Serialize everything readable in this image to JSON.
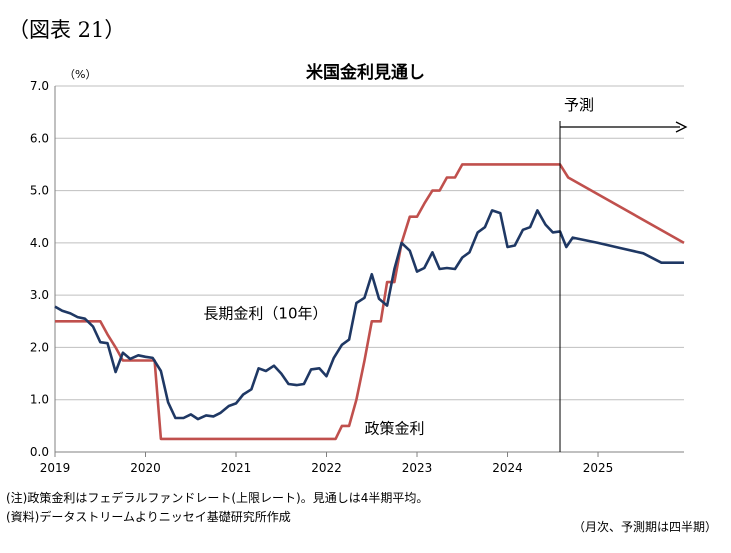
{
  "figure_label": "（図表 21）",
  "notes": {
    "note1": "(注)政策金利はフェデラルファンドレート(上限レート)。見通しは4半期平均。",
    "note2": "(資料)データストリームよりニッセイ基礎研究所作成",
    "note3": "（月次、予測期は四半期）"
  },
  "chart_data": {
    "type": "line",
    "title": "米国金利見通し",
    "ylabel": "（%）",
    "xlabel": "",
    "ylim": [
      0,
      7
    ],
    "yticks": [
      "0.0",
      "1.0",
      "2.0",
      "3.0",
      "4.0",
      "5.0",
      "6.0",
      "7.0"
    ],
    "xticks": [
      "2019",
      "2020",
      "2021",
      "2022",
      "2023",
      "2024",
      "2025"
    ],
    "xlim": [
      2019.0,
      2025.95
    ],
    "grid": true,
    "legend": "none",
    "forecast_start": 2024.58,
    "forecast_label": "予測",
    "series": [
      {
        "name": "政策金利",
        "color": "#c0504d",
        "points": [
          [
            2019.0,
            2.5
          ],
          [
            2019.5,
            2.5
          ],
          [
            2019.58,
            2.25
          ],
          [
            2019.67,
            2.0
          ],
          [
            2019.75,
            1.75
          ],
          [
            2020.1,
            1.75
          ],
          [
            2020.17,
            0.25
          ],
          [
            2022.1,
            0.25
          ],
          [
            2022.17,
            0.5
          ],
          [
            2022.25,
            0.5
          ],
          [
            2022.33,
            1.0
          ],
          [
            2022.42,
            1.75
          ],
          [
            2022.5,
            2.5
          ],
          [
            2022.6,
            2.5
          ],
          [
            2022.67,
            3.25
          ],
          [
            2022.75,
            3.25
          ],
          [
            2022.83,
            4.0
          ],
          [
            2022.92,
            4.5
          ],
          [
            2023.0,
            4.5
          ],
          [
            2023.08,
            4.75
          ],
          [
            2023.17,
            5.0
          ],
          [
            2023.25,
            5.0
          ],
          [
            2023.33,
            5.25
          ],
          [
            2023.42,
            5.25
          ],
          [
            2023.5,
            5.5
          ],
          [
            2024.58,
            5.5
          ],
          [
            2024.67,
            5.25
          ],
          [
            2025.95,
            4.0
          ]
        ]
      },
      {
        "name": "長期金利（10年）",
        "color": "#1f3864",
        "points": [
          [
            2019.0,
            2.78
          ],
          [
            2019.08,
            2.7
          ],
          [
            2019.17,
            2.65
          ],
          [
            2019.25,
            2.58
          ],
          [
            2019.33,
            2.55
          ],
          [
            2019.42,
            2.4
          ],
          [
            2019.5,
            2.1
          ],
          [
            2019.58,
            2.08
          ],
          [
            2019.67,
            1.53
          ],
          [
            2019.75,
            1.9
          ],
          [
            2019.83,
            1.78
          ],
          [
            2019.92,
            1.85
          ],
          [
            2020.0,
            1.82
          ],
          [
            2020.08,
            1.8
          ],
          [
            2020.17,
            1.55
          ],
          [
            2020.25,
            0.95
          ],
          [
            2020.33,
            0.65
          ],
          [
            2020.42,
            0.65
          ],
          [
            2020.5,
            0.72
          ],
          [
            2020.58,
            0.63
          ],
          [
            2020.67,
            0.7
          ],
          [
            2020.75,
            0.68
          ],
          [
            2020.83,
            0.75
          ],
          [
            2020.92,
            0.88
          ],
          [
            2021.0,
            0.93
          ],
          [
            2021.08,
            1.1
          ],
          [
            2021.17,
            1.2
          ],
          [
            2021.25,
            1.6
          ],
          [
            2021.33,
            1.55
          ],
          [
            2021.42,
            1.65
          ],
          [
            2021.5,
            1.5
          ],
          [
            2021.58,
            1.3
          ],
          [
            2021.67,
            1.28
          ],
          [
            2021.75,
            1.3
          ],
          [
            2021.83,
            1.58
          ],
          [
            2021.92,
            1.6
          ],
          [
            2022.0,
            1.45
          ],
          [
            2022.08,
            1.8
          ],
          [
            2022.17,
            2.05
          ],
          [
            2022.25,
            2.15
          ],
          [
            2022.33,
            2.85
          ],
          [
            2022.42,
            2.95
          ],
          [
            2022.5,
            3.4
          ],
          [
            2022.58,
            2.93
          ],
          [
            2022.67,
            2.8
          ],
          [
            2022.75,
            3.5
          ],
          [
            2022.83,
            4.0
          ],
          [
            2022.92,
            3.85
          ],
          [
            2023.0,
            3.45
          ],
          [
            2023.08,
            3.52
          ],
          [
            2023.17,
            3.82
          ],
          [
            2023.25,
            3.5
          ],
          [
            2023.33,
            3.52
          ],
          [
            2023.42,
            3.5
          ],
          [
            2023.5,
            3.72
          ],
          [
            2023.58,
            3.82
          ],
          [
            2023.67,
            4.2
          ],
          [
            2023.75,
            4.3
          ],
          [
            2023.83,
            4.62
          ],
          [
            2023.92,
            4.57
          ],
          [
            2024.0,
            3.92
          ],
          [
            2024.08,
            3.95
          ],
          [
            2024.17,
            4.25
          ],
          [
            2024.25,
            4.3
          ],
          [
            2024.33,
            4.62
          ],
          [
            2024.42,
            4.35
          ],
          [
            2024.5,
            4.2
          ],
          [
            2024.58,
            4.22
          ],
          [
            2024.65,
            3.92
          ],
          [
            2024.72,
            4.1
          ],
          [
            2025.0,
            4.0
          ],
          [
            2025.25,
            3.9
          ],
          [
            2025.5,
            3.8
          ],
          [
            2025.7,
            3.62
          ],
          [
            2025.95,
            3.62
          ]
        ]
      }
    ],
    "annotations": [
      {
        "text": "長期金利（10年）",
        "x": 2020.64,
        "y": 2.55
      },
      {
        "text": "政策金利",
        "x": 2022.42,
        "y": 0.35
      }
    ]
  }
}
